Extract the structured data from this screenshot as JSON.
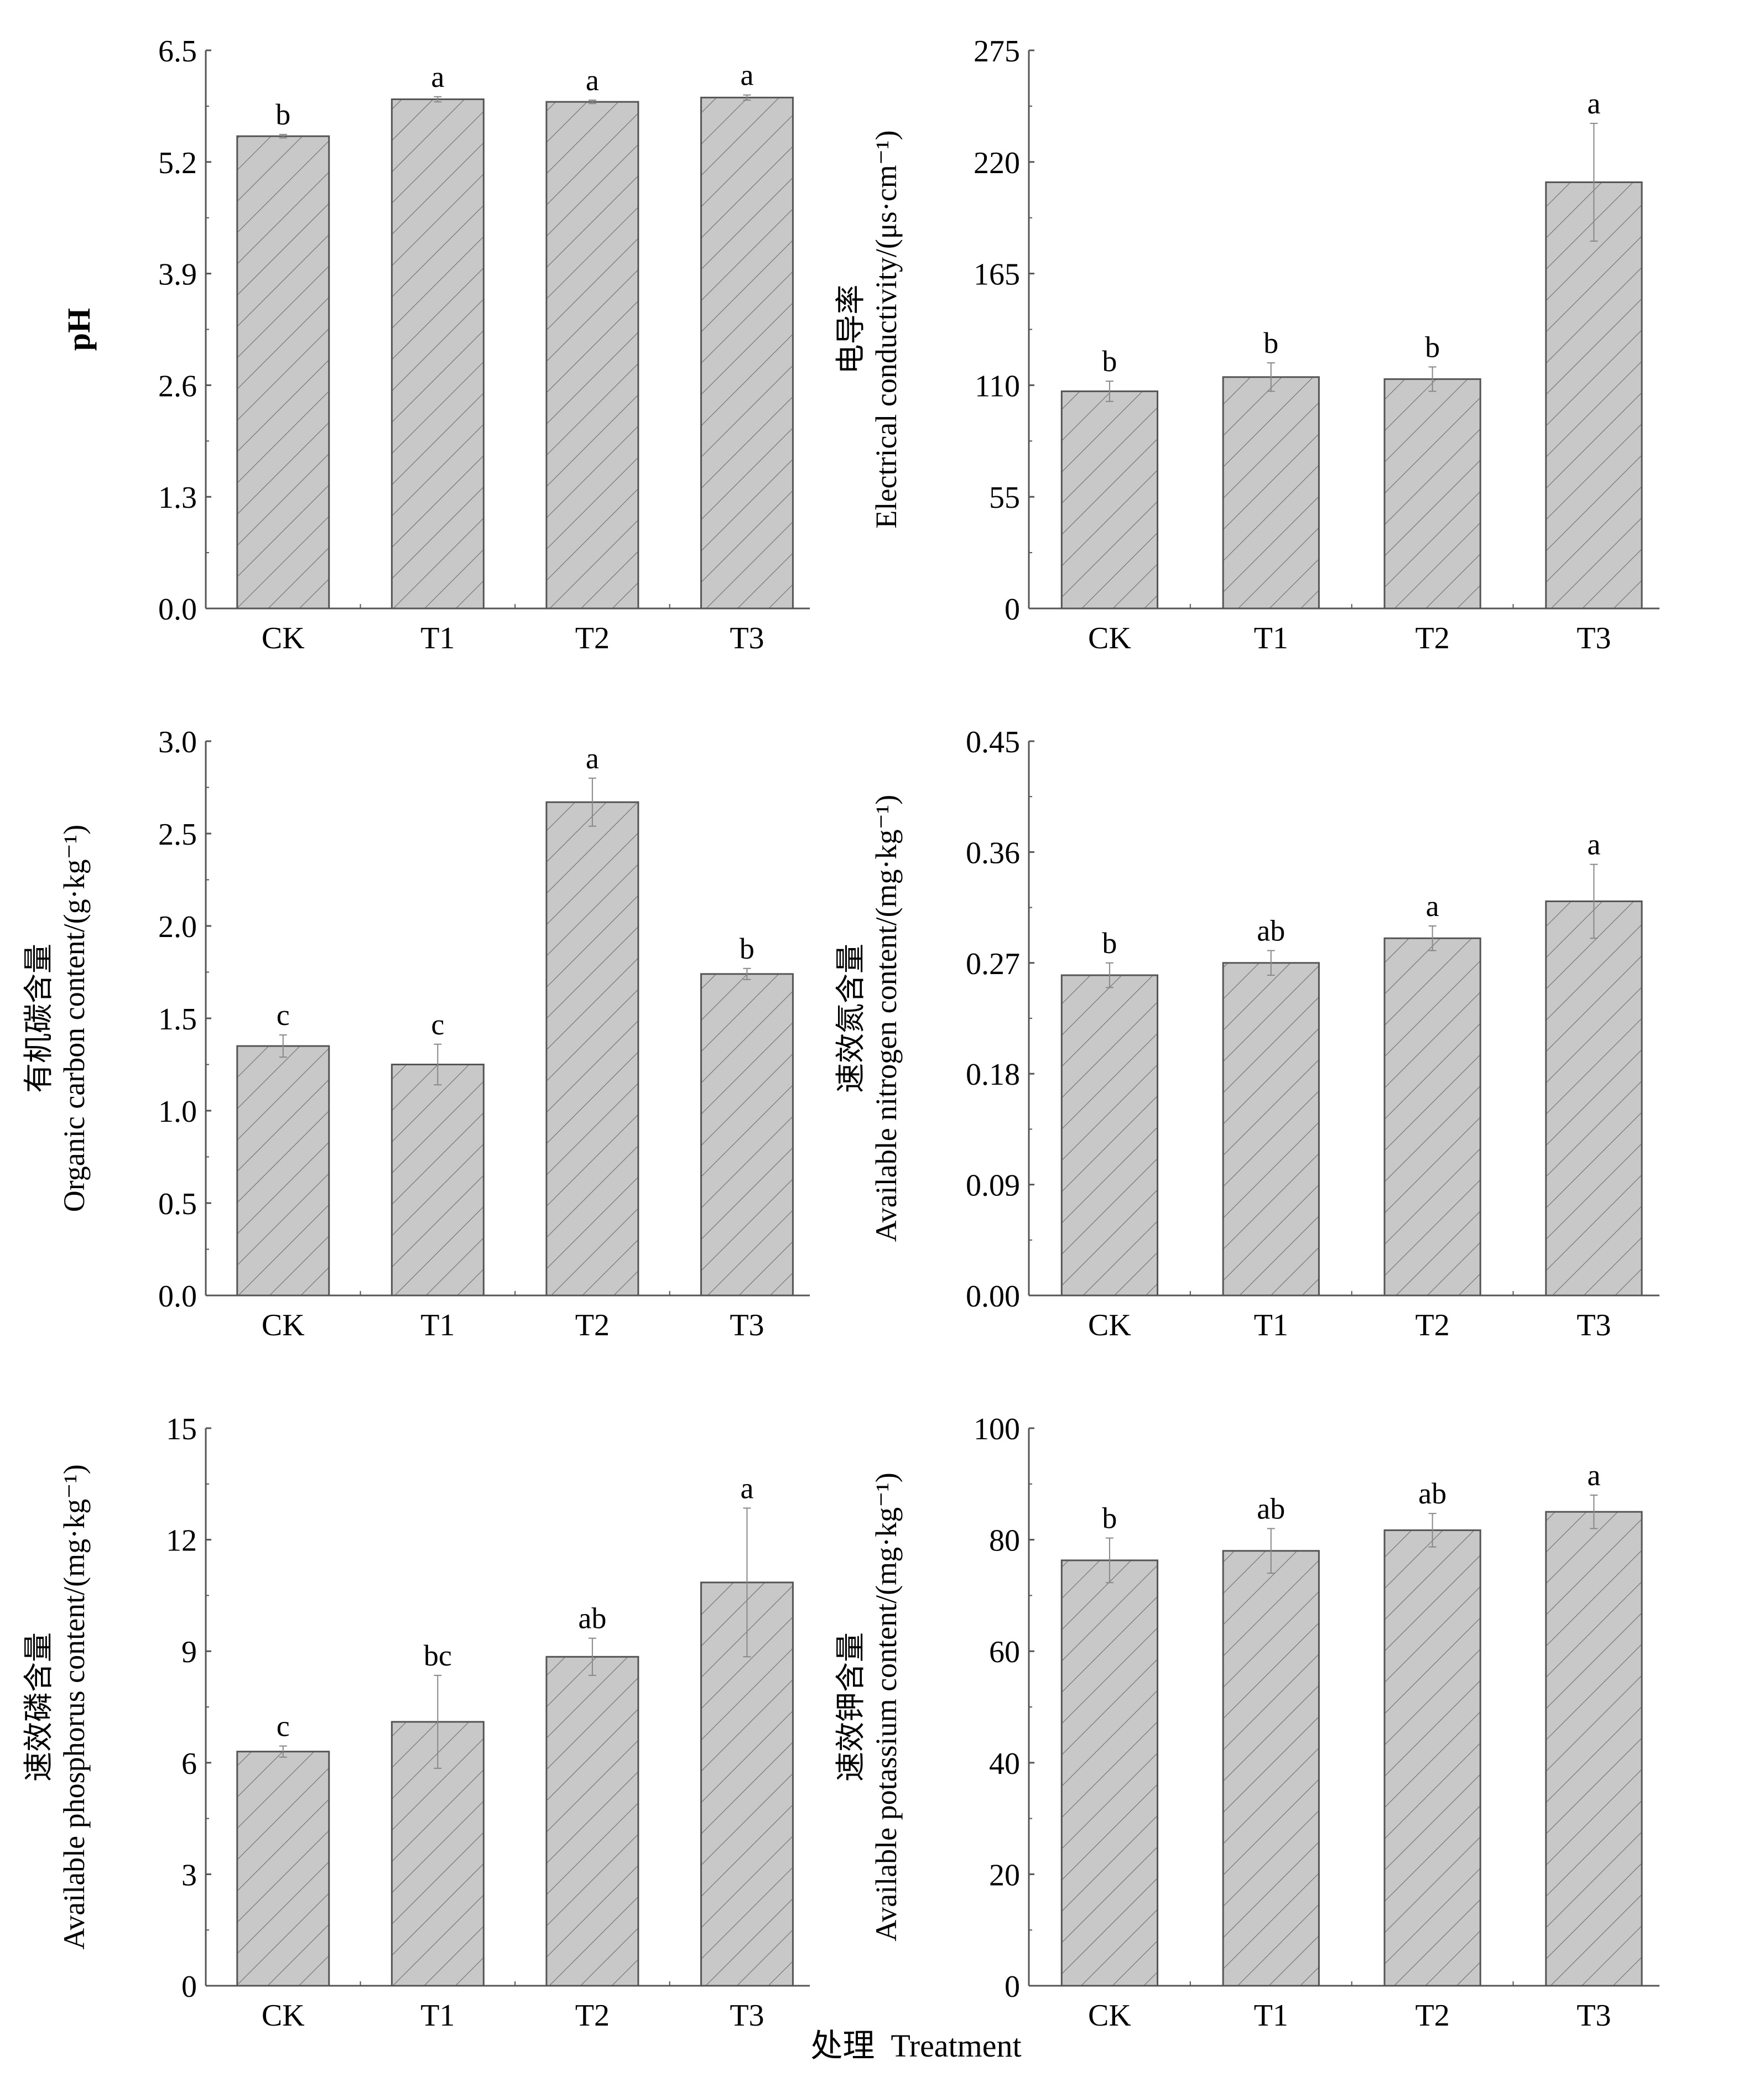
{
  "footer_label": "处理  Treatment",
  "colors": {
    "bar_fill": "#c8c8c8",
    "bar_stroke": "#555555",
    "hatch": "#777777",
    "axis": "#555555"
  },
  "chart_data": [
    {
      "type": "bar",
      "ylabel_cn": "",
      "ylabel": "pH",
      "categories": [
        "CK",
        "T1",
        "T2",
        "T3"
      ],
      "values": [
        5.5,
        5.93,
        5.9,
        5.95
      ],
      "errors": [
        0.02,
        0.03,
        0.02,
        0.03
      ],
      "letters": [
        "b",
        "a",
        "a",
        "a"
      ],
      "ylim": [
        0,
        6.5
      ],
      "yticks": [
        "0.0",
        "1.3",
        "2.6",
        "3.9",
        "5.2",
        "6.5"
      ]
    },
    {
      "type": "bar",
      "ylabel_cn": "电导率",
      "ylabel": "Electrical conductivity/(μs·cm⁻¹)",
      "categories": [
        "CK",
        "T1",
        "T2",
        "T3"
      ],
      "values": [
        107,
        114,
        113,
        210
      ],
      "errors": [
        5,
        7,
        6,
        29
      ],
      "letters": [
        "b",
        "b",
        "b",
        "a"
      ],
      "ylim": [
        0,
        275
      ],
      "yticks": [
        "0",
        "55",
        "110",
        "165",
        "220",
        "275"
      ]
    },
    {
      "type": "bar",
      "ylabel_cn": "有机碳含量",
      "ylabel": "Organic carbon content/(g·kg⁻¹)",
      "categories": [
        "CK",
        "T1",
        "T2",
        "T3"
      ],
      "values": [
        1.35,
        1.25,
        2.67,
        1.74
      ],
      "errors": [
        0.06,
        0.11,
        0.13,
        0.03
      ],
      "letters": [
        "c",
        "c",
        "a",
        "b"
      ],
      "ylim": [
        0,
        3.0
      ],
      "yticks": [
        "0.0",
        "0.5",
        "1.0",
        "1.5",
        "2.0",
        "2.5",
        "3.0"
      ]
    },
    {
      "type": "bar",
      "ylabel_cn": "速效氮含量",
      "ylabel": "Available nitrogen content/(mg·kg⁻¹)",
      "categories": [
        "CK",
        "T1",
        "T2",
        "T3"
      ],
      "values": [
        0.26,
        0.27,
        0.29,
        0.32
      ],
      "errors": [
        0.01,
        0.01,
        0.01,
        0.03
      ],
      "letters": [
        "b",
        "ab",
        "a",
        "a"
      ],
      "ylim": [
        0,
        0.45
      ],
      "yticks": [
        "0.00",
        "0.09",
        "0.18",
        "0.27",
        "0.36",
        "0.45"
      ]
    },
    {
      "type": "bar",
      "ylabel_cn": "速效磷含量",
      "ylabel": "Available phosphorus content/(mg·kg⁻¹)",
      "categories": [
        "CK",
        "T1",
        "T2",
        "T3"
      ],
      "values": [
        6.3,
        7.1,
        8.85,
        10.85
      ],
      "errors": [
        0.15,
        1.25,
        0.5,
        2.0
      ],
      "letters": [
        "c",
        "bc",
        "ab",
        "a"
      ],
      "ylim": [
        0,
        15
      ],
      "yticks": [
        "0",
        "3",
        "6",
        "9",
        "12",
        "15"
      ]
    },
    {
      "type": "bar",
      "ylabel_cn": "速效钾含量",
      "ylabel": "Available potassium content/(mg·kg⁻¹)",
      "categories": [
        "CK",
        "T1",
        "T2",
        "T3"
      ],
      "values": [
        76.3,
        78,
        81.7,
        85
      ],
      "errors": [
        4,
        4,
        3,
        3
      ],
      "letters": [
        "b",
        "ab",
        "ab",
        "a"
      ],
      "ylim": [
        0,
        100
      ],
      "yticks": [
        "0",
        "20",
        "40",
        "60",
        "80",
        "100"
      ]
    }
  ]
}
